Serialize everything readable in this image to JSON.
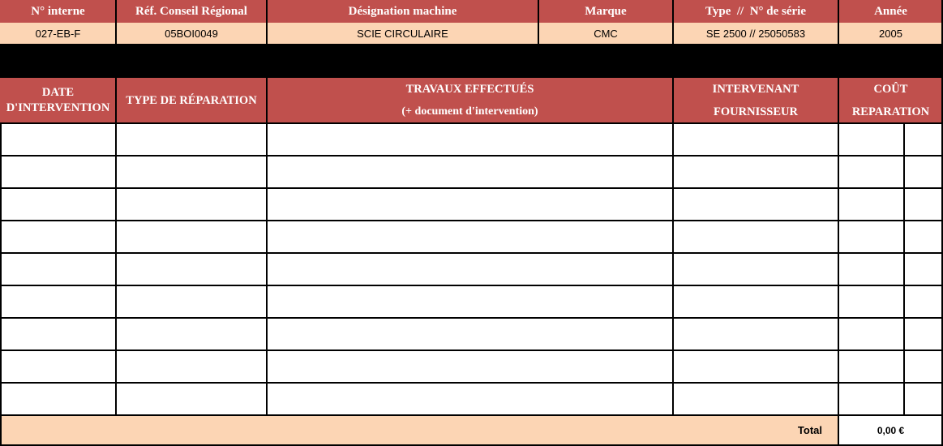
{
  "header": {
    "columns": [
      "N° interne",
      "Réf. Conseil Régional",
      "Désignation machine",
      "Marque",
      "Type  //  N° de série",
      "Année"
    ],
    "values": [
      "027-EB-F",
      "05BOI0049",
      "SCIE CIRCULAIRE",
      "CMC",
      "SE 2500 // 25050583",
      "2005"
    ]
  },
  "table": {
    "col_date_1": "DATE",
    "col_date_2": "D'INTERVENTION",
    "col_type": "TYPE DE RÉPARATION",
    "col_travaux_1": "TRAVAUX EFFECTUÉS",
    "col_travaux_2": "(+ document d'intervention)",
    "col_intervenant_1": "INTERVENANT",
    "col_intervenant_2": "FOURNISSEUR",
    "col_cout_1": "COÛT",
    "col_cout_2": "REPARATION",
    "empty_rows": 9
  },
  "footer": {
    "total_label": "Total",
    "total_value": "0,00 €"
  },
  "colors": {
    "header": "#c0504d",
    "value_bg": "#fcd5b4"
  }
}
